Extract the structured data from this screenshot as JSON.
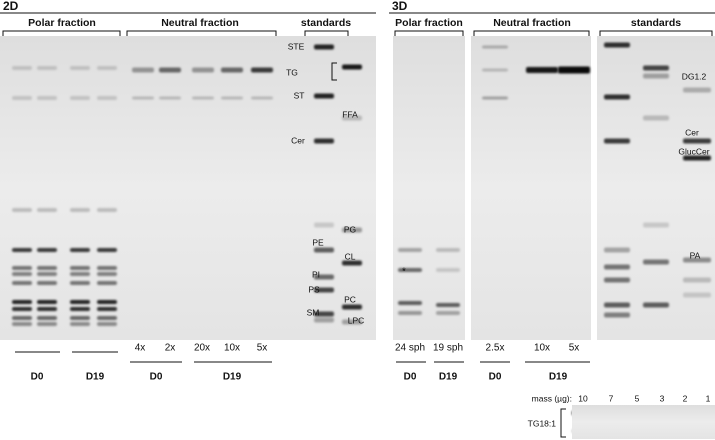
{
  "panel_2d": {
    "label": "2D",
    "headers": [
      "Polar fraction",
      "Neutral fraction",
      "standards"
    ],
    "standard_labels": [
      "STE",
      "TG",
      "ST",
      "FFA",
      "Cer",
      "PE",
      "PG",
      "CL",
      "PI",
      "PS",
      "PC",
      "SM",
      "LPC"
    ],
    "dilutions": [
      "4x",
      "2x",
      "20x",
      "10x",
      "5x"
    ],
    "groups": [
      "D0",
      "D19",
      "D0",
      "D19"
    ]
  },
  "panel_3d": {
    "label": "3D",
    "headers": [
      "Polar fraction",
      "Neutral fraction",
      "standards"
    ],
    "standard_labels": [
      "DG1.2",
      "Cer",
      "GlucCer",
      "PA"
    ],
    "marker": "*",
    "lanes": [
      "24 sph",
      "19 sph",
      "2.5x",
      "10x",
      "5x"
    ],
    "groups": [
      "D0",
      "D19",
      "D0",
      "D19"
    ]
  },
  "mass_inset": {
    "title": "mass (µg):",
    "masses": [
      10,
      7,
      5,
      3,
      2,
      1
    ],
    "label": "TG18:1"
  }
}
